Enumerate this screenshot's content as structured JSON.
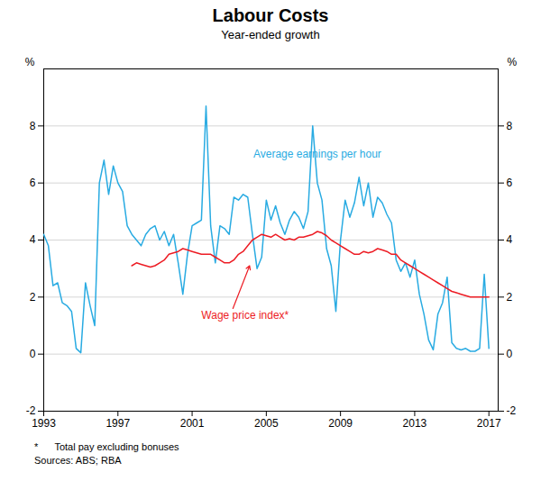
{
  "chart_data": {
    "type": "line",
    "title": "Labour Costs",
    "subtitle": "Year-ended growth",
    "ylabel": "%",
    "y2label": "%",
    "footnotes": [
      "*      Total pay excluding bonuses",
      "Sources: ABS; RBA"
    ],
    "xlim": [
      1993.0,
      2017.5
    ],
    "xticks": [
      1993,
      1997,
      2001,
      2005,
      2009,
      2013,
      2017
    ],
    "ylim": [
      -2,
      10
    ],
    "yticks": [
      -2,
      0,
      2,
      4,
      6,
      8
    ],
    "y2lim": [
      -2,
      10
    ],
    "y2ticks": [
      -2,
      0,
      2,
      4,
      6,
      8
    ],
    "grid": true,
    "series": [
      {
        "name": "Average earnings per hour",
        "color": "#29ABE2",
        "x": [
          1993.0,
          1993.25,
          1993.5,
          1993.75,
          1994.0,
          1994.25,
          1994.5,
          1994.75,
          1995.0,
          1995.25,
          1995.5,
          1995.75,
          1996.0,
          1996.25,
          1996.5,
          1996.75,
          1997.0,
          1997.25,
          1997.5,
          1997.75,
          1998.0,
          1998.25,
          1998.5,
          1998.75,
          1999.0,
          1999.25,
          1999.5,
          1999.75,
          2000.0,
          2000.25,
          2000.5,
          2000.75,
          2001.0,
          2001.25,
          2001.5,
          2001.75,
          2002.0,
          2002.25,
          2002.5,
          2002.75,
          2003.0,
          2003.25,
          2003.5,
          2003.75,
          2004.0,
          2004.25,
          2004.5,
          2004.75,
          2005.0,
          2005.25,
          2005.5,
          2005.75,
          2006.0,
          2006.25,
          2006.5,
          2006.75,
          2007.0,
          2007.25,
          2007.5,
          2007.75,
          2008.0,
          2008.25,
          2008.5,
          2008.75,
          2009.0,
          2009.25,
          2009.5,
          2009.75,
          2010.0,
          2010.25,
          2010.5,
          2010.75,
          2011.0,
          2011.25,
          2011.5,
          2011.75,
          2012.0,
          2012.25,
          2012.5,
          2012.75,
          2013.0,
          2013.25,
          2013.5,
          2013.75,
          2014.0,
          2014.25,
          2014.5,
          2014.75,
          2015.0,
          2015.25,
          2015.5,
          2015.75,
          2016.0,
          2016.25,
          2016.5,
          2016.75,
          2017.0
        ],
        "values": [
          4.2,
          3.8,
          2.4,
          2.5,
          1.8,
          1.7,
          1.5,
          0.2,
          0.05,
          2.5,
          1.7,
          1.0,
          6.0,
          6.8,
          5.6,
          6.6,
          6.0,
          5.7,
          4.5,
          4.2,
          4.0,
          3.8,
          4.2,
          4.4,
          4.5,
          4.0,
          4.3,
          3.8,
          4.2,
          3.2,
          2.1,
          3.5,
          4.5,
          4.6,
          4.7,
          8.7,
          4.5,
          3.2,
          4.5,
          4.4,
          4.2,
          5.5,
          5.4,
          5.6,
          5.5,
          4.2,
          3.0,
          3.4,
          5.4,
          4.7,
          5.2,
          4.6,
          4.2,
          4.7,
          5.0,
          4.8,
          4.4,
          5.0,
          8.0,
          6.0,
          5.4,
          3.7,
          3.1,
          1.5,
          4.0,
          5.4,
          4.8,
          5.3,
          6.2,
          5.2,
          6.0,
          4.8,
          5.5,
          5.3,
          4.9,
          4.6,
          3.3,
          2.9,
          3.2,
          2.7,
          3.3,
          2.1,
          1.4,
          0.5,
          0.15,
          1.4,
          1.8,
          2.7,
          0.4,
          0.2,
          0.15,
          0.2,
          0.1,
          0.1,
          0.2,
          2.8,
          0.2
        ]
      },
      {
        "name": "Wage price index*",
        "color": "#ED1C24",
        "x": [
          1997.75,
          1998.0,
          1998.25,
          1998.5,
          1998.75,
          1999.0,
          1999.25,
          1999.5,
          1999.75,
          2000.0,
          2000.25,
          2000.5,
          2000.75,
          2001.0,
          2001.25,
          2001.5,
          2001.75,
          2002.0,
          2002.25,
          2002.5,
          2002.75,
          2003.0,
          2003.25,
          2003.5,
          2003.75,
          2004.0,
          2004.25,
          2004.5,
          2004.75,
          2005.0,
          2005.25,
          2005.5,
          2005.75,
          2006.0,
          2006.25,
          2006.5,
          2006.75,
          2007.0,
          2007.25,
          2007.5,
          2007.75,
          2008.0,
          2008.25,
          2008.5,
          2008.75,
          2009.0,
          2009.25,
          2009.5,
          2009.75,
          2010.0,
          2010.25,
          2010.5,
          2010.75,
          2011.0,
          2011.25,
          2011.5,
          2011.75,
          2012.0,
          2012.25,
          2012.5,
          2012.75,
          2013.0,
          2013.25,
          2013.5,
          2013.75,
          2014.0,
          2014.25,
          2014.5,
          2014.75,
          2015.0,
          2015.25,
          2015.5,
          2015.75,
          2016.0,
          2016.25,
          2016.5,
          2016.75,
          2017.0
        ],
        "values": [
          3.1,
          3.2,
          3.15,
          3.1,
          3.05,
          3.1,
          3.2,
          3.3,
          3.5,
          3.55,
          3.6,
          3.7,
          3.65,
          3.6,
          3.55,
          3.5,
          3.5,
          3.5,
          3.4,
          3.3,
          3.2,
          3.2,
          3.3,
          3.5,
          3.6,
          3.8,
          4.0,
          4.1,
          4.2,
          4.15,
          4.1,
          4.2,
          4.1,
          4.0,
          4.05,
          4.0,
          4.1,
          4.1,
          4.15,
          4.2,
          4.3,
          4.25,
          4.15,
          4.0,
          3.9,
          3.8,
          3.7,
          3.6,
          3.5,
          3.5,
          3.6,
          3.55,
          3.6,
          3.7,
          3.65,
          3.6,
          3.5,
          3.5,
          3.3,
          3.2,
          3.1,
          3.0,
          2.9,
          2.8,
          2.7,
          2.6,
          2.5,
          2.4,
          2.3,
          2.2,
          2.15,
          2.1,
          2.05,
          2.0,
          2.0,
          2.0,
          2.0,
          2.0
        ]
      }
    ],
    "annotations": [
      {
        "text": "Average earnings per hour",
        "x": 2004.3,
        "y": 7.0,
        "color": "#29ABE2"
      },
      {
        "text": "Wage price index*",
        "x": 2001.5,
        "y": 1.35,
        "color": "#ED1C24"
      }
    ],
    "arrows": [
      {
        "x1": 2003.2,
        "y1": 1.6,
        "x2": 2004.1,
        "y2": 3.1,
        "color": "#ED1C24"
      }
    ]
  }
}
